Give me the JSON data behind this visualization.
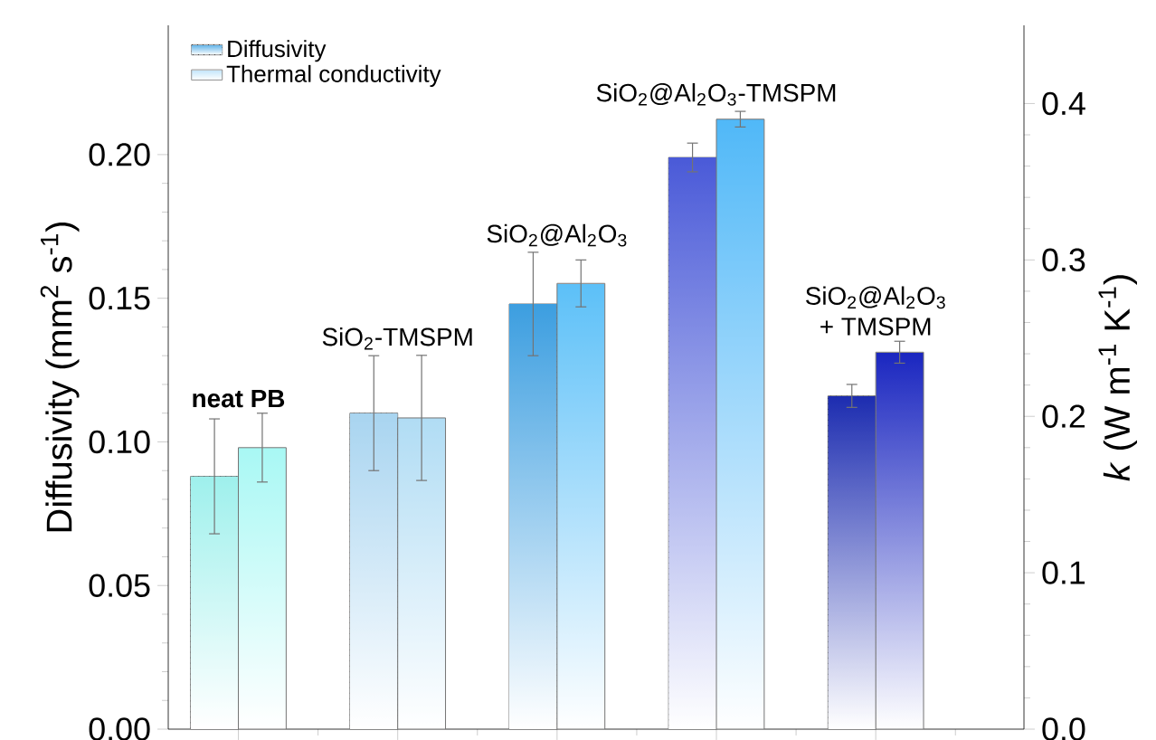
{
  "chart_data": {
    "type": "bar",
    "ylabel": "Diffusivity (mm$^{2}$ s$^{-1}$)",
    "y2label": "*k* (W m$^{-1}$ K$^{-1}$)",
    "categories": [
      null,
      null,
      null,
      null,
      null
    ],
    "series": [
      {
        "name": "Diffusivity",
        "axis": "y",
        "color": "#5ab0e8",
        "colors": [
          "#9ef0ec",
          "#a8d4f0",
          "#3c9ee0",
          "#4a5ad8",
          "#1c2cb0"
        ],
        "values": [
          0.088,
          0.11,
          0.148,
          0.199,
          0.116
        ],
        "errors": [
          0.02,
          0.02,
          0.018,
          0.005,
          0.004
        ]
      },
      {
        "name": "Thermal conductivity",
        "axis": "y2",
        "color": "#bfe4fa",
        "colors": [
          "#a8f8f4",
          "#b0dcf4",
          "#5cc0f8",
          "#50b8f8",
          "#1a26c0"
        ],
        "values": [
          0.18,
          0.199,
          0.285,
          0.39,
          0.241
        ],
        "errors": [
          0.022,
          0.04,
          0.015,
          0.005,
          0.007
        ]
      }
    ],
    "ylim": [
      0,
      0.245
    ],
    "yticks": [
      {
        "value": 0,
        "label": "0.00"
      },
      {
        "value": 0.05,
        "label": "0.05"
      },
      {
        "value": 0.1,
        "label": "0.10"
      },
      {
        "value": 0.15,
        "label": "0.15"
      },
      {
        "value": 0.2,
        "label": "0.20"
      }
    ],
    "y2lim": [
      0,
      0.45
    ],
    "y2ticks": [
      {
        "value": 0,
        "label": "0.0"
      },
      0.1,
      0.2,
      0.3,
      0.4
    ],
    "annotations": [
      "**neat PB**",
      "SiO$_{2}$-TMSPM",
      "SiO$_{2}$@Al$_{2}$O$_{3}$",
      "SiO$_{2}$@Al$_{2}$O$_{3}$-TMSPM",
      "SiO$_{2}$@Al$_{2}$O$_{3}$\n+ TMSPM"
    ],
    "legend": "top left",
    "grid": false
  }
}
